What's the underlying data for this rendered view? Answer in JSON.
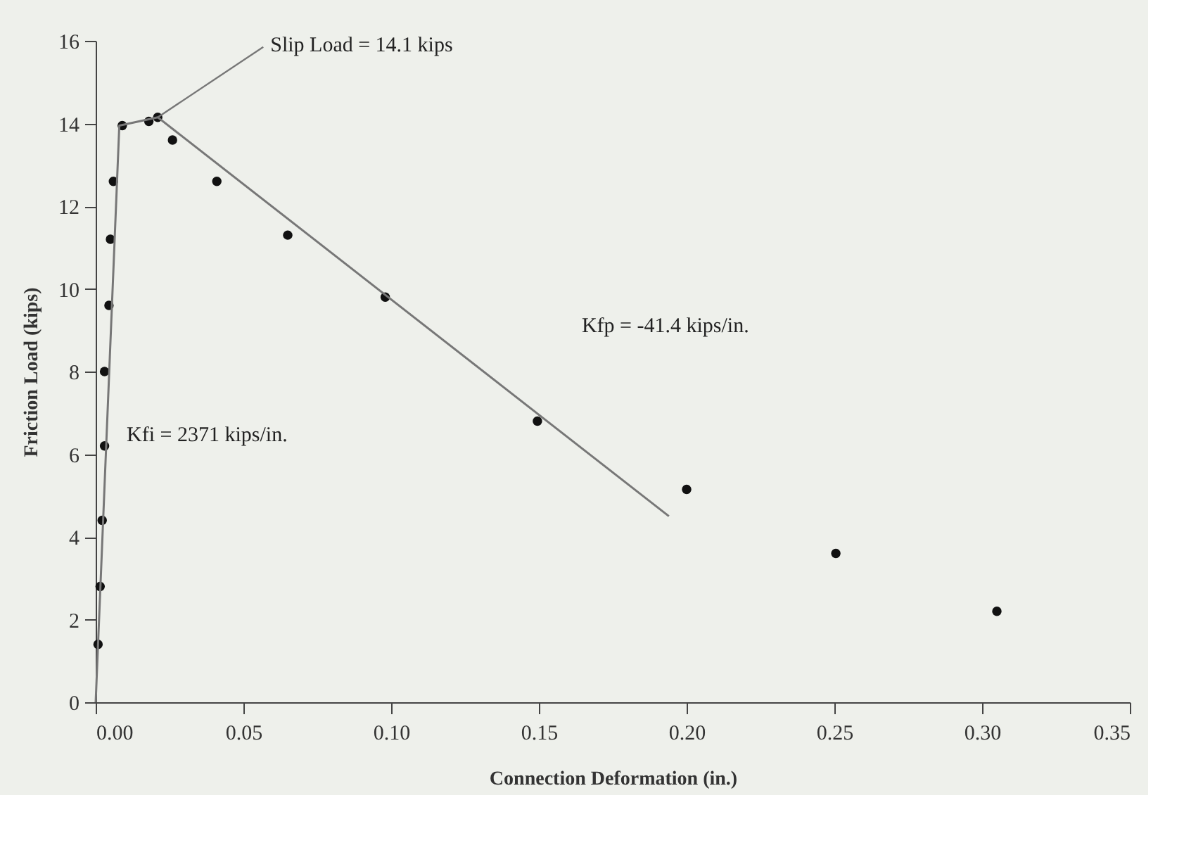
{
  "chart_data": {
    "type": "scatter",
    "xlabel": "Connection Deformation (in.)",
    "ylabel": "Friction Load (kips)",
    "xlim": [
      0,
      0.35
    ],
    "xticks": [
      {
        "value": 0,
        "label": "0.00"
      },
      0.05,
      {
        "value": 0.1,
        "label": "0.10"
      },
      0.15,
      {
        "value": 0.2,
        "label": "0.20"
      },
      0.25,
      {
        "value": 0.3,
        "label": "0.30"
      },
      0.35
    ],
    "ylim": [
      0,
      16
    ],
    "yticks": [
      0,
      2,
      4,
      6,
      8,
      10,
      12,
      14,
      16
    ],
    "grid": false,
    "series": [
      {
        "color": "#111111",
        "marker": "circle",
        "x": [
          0.0008,
          0.0015,
          0.0022,
          0.003,
          0.003,
          0.0045,
          0.005,
          0.006,
          0.009,
          0.018,
          0.021,
          0.026,
          0.041,
          0.065,
          0.098,
          0.1495,
          0.2,
          0.2505,
          0.305
        ],
        "values": [
          1.4,
          2.8,
          4.4,
          6.2,
          8.0,
          9.6,
          11.2,
          12.6,
          13.95,
          14.05,
          14.15,
          13.6,
          12.6,
          11.3,
          9.8,
          6.8,
          5.15,
          3.6,
          2.2
        ]
      },
      {
        "type": "line",
        "color": "#777777",
        "line_style": "solid",
        "marker": "none",
        "x": [
          0,
          0.008,
          0.021
        ],
        "values": [
          0,
          13.95,
          14.15
        ]
      },
      {
        "type": "line",
        "color": "#777777",
        "line_style": "solid",
        "marker": "none",
        "x": [
          0.021,
          0.194
        ],
        "values": [
          14.15,
          4.5
        ]
      }
    ],
    "annotations": [
      {
        "text": "Slip Load = 14.1 kips",
        "x": 0.021,
        "y": 14.15
      },
      "Kfi = 2371 kips/in.",
      "Kfp = -41.4 kips/in."
    ]
  }
}
